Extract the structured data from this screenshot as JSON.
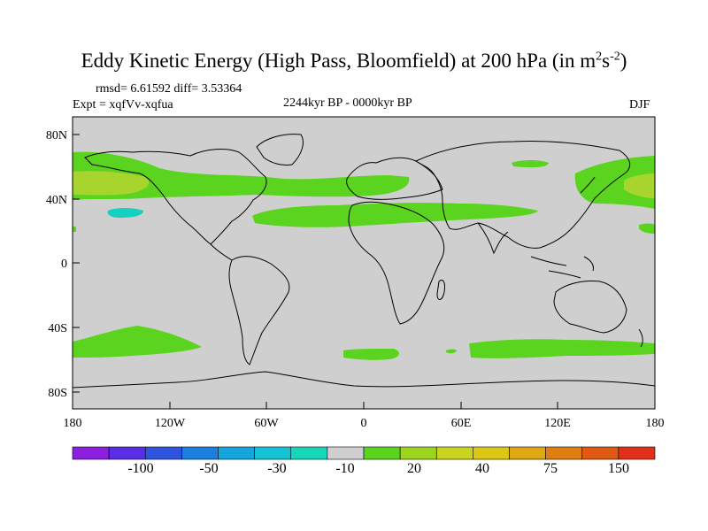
{
  "title": {
    "main": "Eddy Kinetic Energy (High Pass, Bloomfield) at 200 hPa (in m",
    "sup1": "2",
    "mid": "s",
    "sup2": "-2",
    "end": ")"
  },
  "stats": "rmsd= 6.61592 diff= 3.53364",
  "experiment": "Expt = xqfVv-xqfua",
  "period": "2244kyr BP - 0000kyr BP",
  "season": "DJF",
  "axes": {
    "lat_labels": [
      "80N",
      "40N",
      "0",
      "40S",
      "80S"
    ],
    "lon_labels": [
      "180",
      "120W",
      "60W",
      "0",
      "60E",
      "120E",
      "180"
    ]
  },
  "colorbar": {
    "labels": [
      "-100",
      "-50",
      "-30",
      "-10",
      "20",
      "40",
      "75",
      "150"
    ],
    "colors": [
      "#8b1fe0",
      "#5a2ee6",
      "#2f55e0",
      "#1a7fe0",
      "#13a5dc",
      "#14c4d4",
      "#16d8b8",
      "#cfcfcf",
      "#5ad41e",
      "#9cd41e",
      "#c8d41e",
      "#dcc814",
      "#e0a814",
      "#e07e14",
      "#e05a14",
      "#e0301a"
    ]
  },
  "palette": {
    "background": "#cfcfcf",
    "positive_low": "#5ad41e",
    "positive_mid": "#a8d42e",
    "negative_low": "#16d0c0"
  }
}
